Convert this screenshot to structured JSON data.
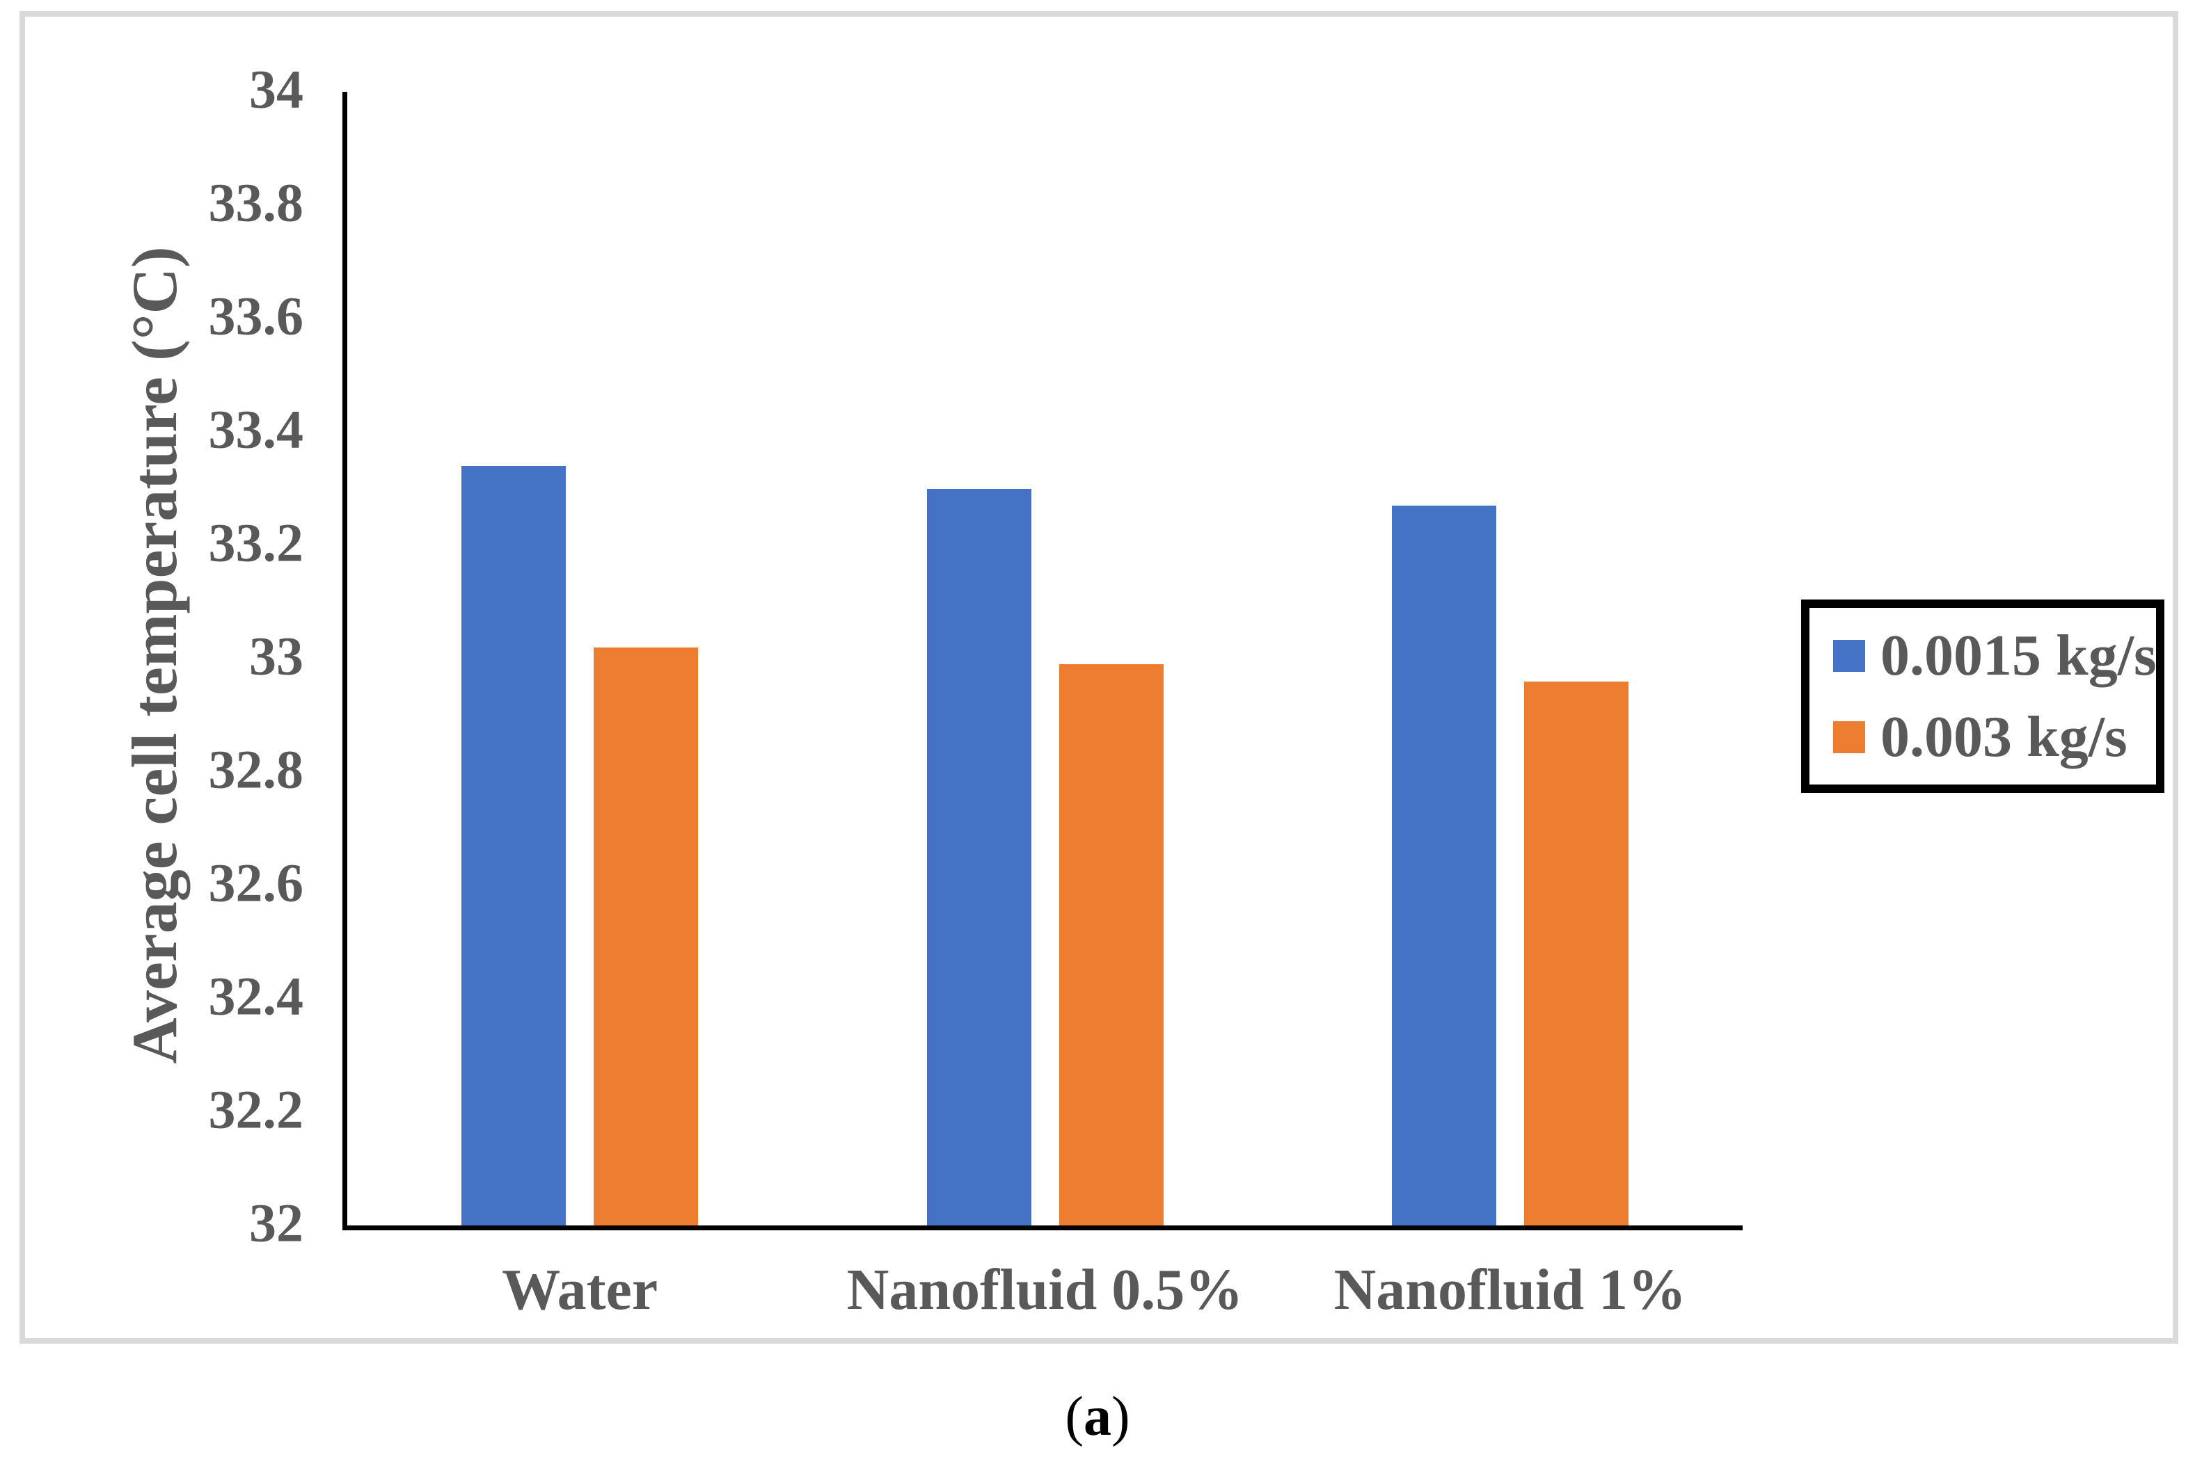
{
  "figure": {
    "caption_open": "(",
    "caption_letter": "a",
    "caption_close": ")"
  },
  "chart_data": {
    "type": "bar",
    "title": "",
    "xlabel": "",
    "ylabel": "Average cell temperature (°C)",
    "categories": [
      "Water",
      "Nanofluid 0.5%",
      "Nanofluid 1%"
    ],
    "series": [
      {
        "name": "0.0015 kg/s",
        "color": "#4472C4",
        "values": [
          33.34,
          33.3,
          33.27
        ]
      },
      {
        "name": "0.003 kg/s",
        "color": "#ED7D31",
        "values": [
          33.02,
          32.99,
          32.96
        ]
      }
    ],
    "ylim": [
      32,
      34
    ],
    "y_tick_labels": [
      "32",
      "32.2",
      "32.4",
      "32.6",
      "32.8",
      "33",
      "33.2",
      "33.4",
      "33.6",
      "33.8",
      "34"
    ],
    "grid": false,
    "legend_position": "right"
  },
  "colors": {
    "background": "#ffffff",
    "frame_border": "#d9d9d9",
    "axis": "#000000",
    "text": "#595959",
    "legend_border": "#000000"
  }
}
